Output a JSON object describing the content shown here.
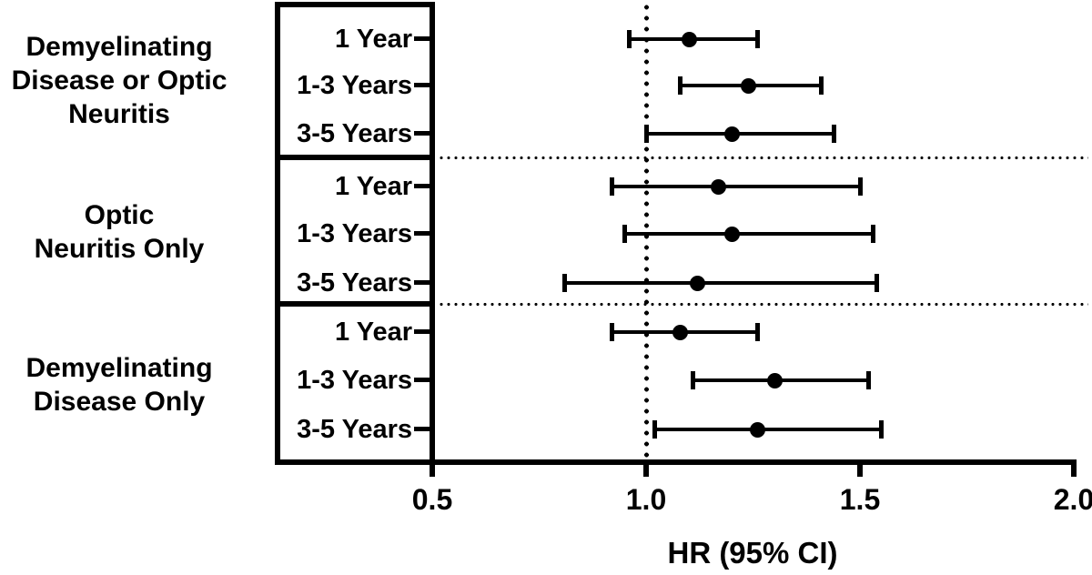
{
  "chart_data": {
    "type": "forest_plot",
    "title": "",
    "xlabel": "HR (95% CI)",
    "x_axis": {
      "min": 0.5,
      "max": 2.0,
      "tick_labels": [
        "0.5",
        "1.0",
        "1.5",
        "2.0"
      ],
      "tick_values": [
        0.5,
        1.0,
        1.5,
        2.0
      ],
      "reference_line": 1.0
    },
    "groups": [
      {
        "label": "Demyelinating Disease or Optic Neuritis",
        "label_lines": [
          "Demyelinating",
          "Disease or Optic",
          "Neuritis"
        ],
        "rows": [
          {
            "label": "1 Year",
            "hr": 1.1,
            "ci_low": 0.96,
            "ci_high": 1.26
          },
          {
            "label": "1-3 Years",
            "hr": 1.24,
            "ci_low": 1.08,
            "ci_high": 1.41
          },
          {
            "label": "3-5 Years",
            "hr": 1.2,
            "ci_low": 1.0,
            "ci_high": 1.44
          }
        ]
      },
      {
        "label": "Optic Neuritis Only",
        "label_lines": [
          "Optic",
          "Neuritis Only"
        ],
        "rows": [
          {
            "label": "1 Year",
            "hr": 1.17,
            "ci_low": 0.92,
            "ci_high": 1.5
          },
          {
            "label": "1-3 Years",
            "hr": 1.2,
            "ci_low": 0.95,
            "ci_high": 1.53
          },
          {
            "label": "3-5 Years",
            "hr": 1.12,
            "ci_low": 0.81,
            "ci_high": 1.54
          }
        ]
      },
      {
        "label": "Demyelinating Disease Only",
        "label_lines": [
          "Demyelinating",
          "Disease Only"
        ],
        "rows": [
          {
            "label": "1 Year",
            "hr": 1.08,
            "ci_low": 0.92,
            "ci_high": 1.26
          },
          {
            "label": "1-3 Years",
            "hr": 1.3,
            "ci_low": 1.11,
            "ci_high": 1.52
          },
          {
            "label": "3-5 Years",
            "hr": 1.26,
            "ci_low": 1.02,
            "ci_high": 1.55
          }
        ]
      }
    ],
    "colors": {
      "ink": "#000000",
      "background": "#ffffff"
    }
  }
}
